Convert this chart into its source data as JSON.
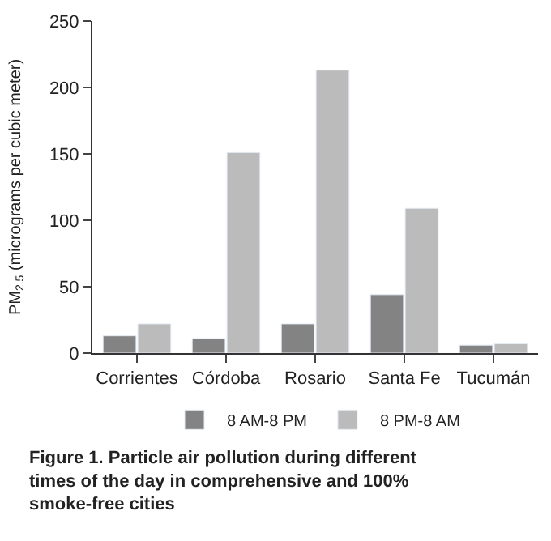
{
  "chart_data": {
    "type": "bar",
    "title": "Figure 1. Particle air pollution during different times of the day in comprehensive and 100% smoke-free cities",
    "ylabel": "PM$_{2.5}$ (micrograms per cubic meter)",
    "categories": [
      "Corrientes",
      "Córdoba",
      "Rosario",
      "Santa Fe",
      "Tucumán"
    ],
    "series": [
      {
        "name": "8 AM-8 PM",
        "color": "#838383",
        "values": [
          13,
          11,
          22,
          44,
          6
        ]
      },
      {
        "name": "8 PM-8 AM",
        "color": "#bbbbbb",
        "values": [
          22,
          151,
          213,
          109,
          7
        ]
      }
    ],
    "ylim": [
      0,
      250
    ],
    "yticks": [
      0,
      50,
      100,
      150,
      200,
      250
    ],
    "grid": false,
    "legend": "bottom"
  }
}
